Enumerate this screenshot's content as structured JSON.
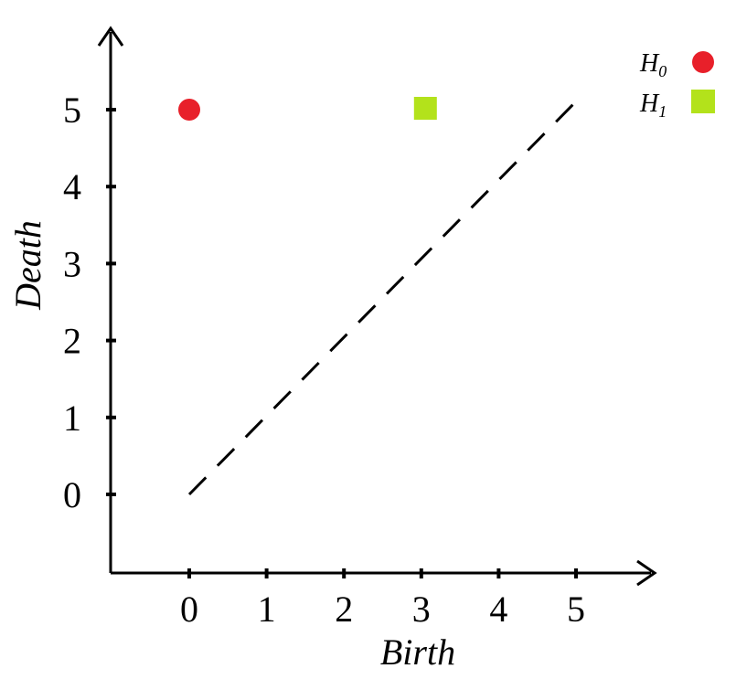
{
  "chart_data": {
    "type": "scatter",
    "xlabel": "Birth",
    "ylabel": "Death",
    "xlim": [
      0,
      5
    ],
    "ylim": [
      0,
      5
    ],
    "xticks": [
      "0",
      "1",
      "2",
      "3",
      "4",
      "5"
    ],
    "yticks": [
      "0",
      "1",
      "2",
      "3",
      "4",
      "5"
    ],
    "grid": false,
    "legend_position": "top-right",
    "diagonal": {
      "from": [
        0,
        0
      ],
      "to": [
        5,
        5
      ],
      "style": "dashed"
    },
    "series": [
      {
        "name": "H",
        "subscript": "0",
        "marker": "circle",
        "color": "#e8202a",
        "points": [
          {
            "x": 0,
            "y": 5
          }
        ]
      },
      {
        "name": "H",
        "subscript": "1",
        "marker": "square",
        "color": "#b3e21b",
        "points": [
          {
            "x": 3,
            "y": 5
          }
        ]
      }
    ]
  }
}
